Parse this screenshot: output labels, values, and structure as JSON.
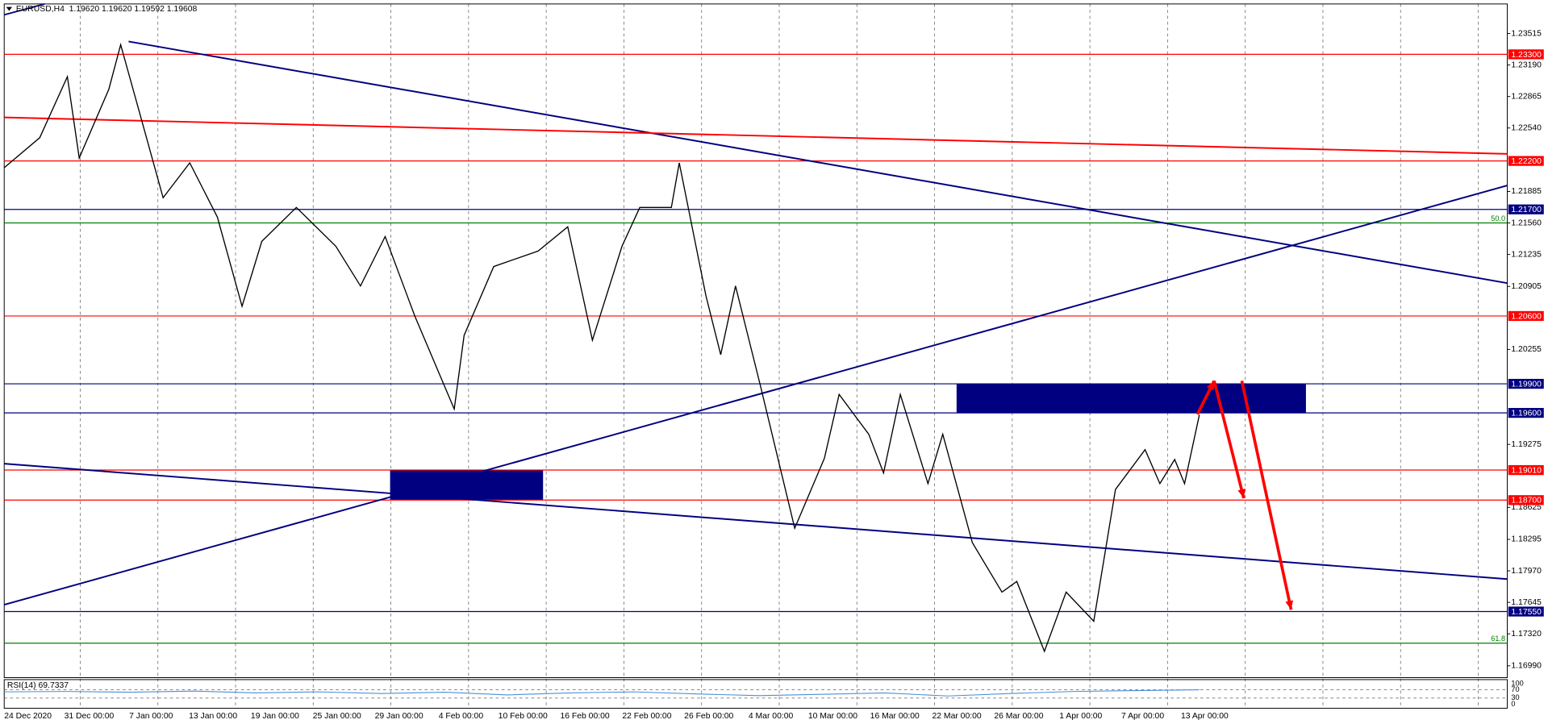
{
  "chart_data": {
    "type": "line",
    "symbol_header": "EURUSD,H4  1.19620 1.19620 1.19592 1.19608",
    "xlim": [
      0,
      1523
    ],
    "ylim": [
      1.16868,
      1.2382
    ],
    "yticks": [
      1.23515,
      {
        "value": 1.2319,
        "label": "1.23190"
      },
      1.22865,
      {
        "value": 1.2254,
        "label": "1.22540"
      },
      1.21885,
      {
        "value": 1.2156,
        "label": "1.21560"
      },
      1.21235,
      1.20905,
      1.20255,
      1.19275,
      1.18625,
      1.18295,
      {
        "value": 1.1797,
        "label": "1.17970"
      },
      1.17645,
      {
        "value": 1.1732,
        "label": "1.17320"
      },
      {
        "value": 1.1699,
        "label": "1.16990"
      }
    ],
    "time_labels": [
      "24 Dec 2020",
      "31 Dec 00:00",
      "7 Jan 00:00",
      "13 Jan 00:00",
      "19 Jan 00:00",
      "25 Jan 00:00",
      "29 Jan 00:00",
      "4 Feb 00:00",
      "10 Feb 00:00",
      "16 Feb 00:00",
      "22 Feb 00:00",
      "26 Feb 00:00",
      "4 Mar 00:00",
      "10 Mar 00:00",
      "16 Mar 00:00",
      "22 Mar 00:00",
      "26 Mar 00:00",
      "1 Apr 00:00",
      "7 Apr 00:00",
      "13 Apr 00:00"
    ],
    "series": [
      {
        "color": "#000000",
        "x": [
          0,
          36,
          64,
          76,
          106,
          118,
          136,
          161,
          188,
          216,
          241,
          261,
          296,
          336,
          361,
          386,
          416,
          456,
          466,
          496,
          541,
          571,
          596,
          626,
          644,
          676,
          684,
          711,
          726,
          741,
          766,
          801,
          831,
          846,
          876,
          891,
          908,
          936,
          951,
          981,
          1011,
          1026,
          1054,
          1076,
          1104,
          1126,
          1156,
          1171,
          1186,
          1196,
          1211
        ],
        "values": [
          1.2213,
          1.2244,
          1.2307,
          1.2223,
          1.2294,
          1.234,
          1.2274,
          1.2182,
          1.2218,
          1.2162,
          1.207,
          1.2137,
          1.2172,
          1.2132,
          1.2091,
          1.2142,
          1.206,
          1.1964,
          1.204,
          1.2111,
          1.2127,
          1.2152,
          1.2035,
          1.2132,
          1.2172,
          1.2172,
          1.2218,
          1.2081,
          1.202,
          1.2091,
          1.1989,
          1.1841,
          1.1913,
          1.1979,
          1.1938,
          1.1898,
          1.1979,
          1.1887,
          1.1938,
          1.1826,
          1.1775,
          1.1786,
          1.1714,
          1.1775,
          1.1745,
          1.1881,
          1.1922,
          1.1887,
          1.1912,
          1.1887,
          1.1958
        ]
      }
    ],
    "levels": [
      {
        "value": 1.233,
        "label": "1.23300",
        "color": "#ff0000"
      },
      {
        "value": 1.222,
        "label": "1.22200",
        "color": "#ff0000"
      },
      {
        "value": 1.217,
        "label": "1.21700",
        "color": "#000080"
      },
      {
        "value": 1.206,
        "label": "1.20600",
        "color": "#ff0000"
      },
      {
        "value": 1.199,
        "label": "1.19900",
        "color": "#000080"
      },
      {
        "value": 1.196,
        "label": "1.19600",
        "color": "#000080"
      },
      {
        "value": 1.1901,
        "label": "1.19010",
        "color": "#ff0000"
      },
      {
        "value": 1.187,
        "label": "1.18700",
        "color": "#ff0000"
      },
      {
        "value": 1.1755,
        "label": "1.17550",
        "color": "#000080"
      }
    ],
    "fib_levels": [
      {
        "value": 1.2156,
        "label": "50.0",
        "color": "#008000"
      },
      {
        "value": 1.17224,
        "label": "61.8",
        "color": "#008000"
      }
    ],
    "trendlines": [
      {
        "x": [
          126,
          1523
        ],
        "values": [
          1.23433,
          1.20939
        ],
        "color": "#000080"
      },
      {
        "x": [
          0,
          1523
        ],
        "values": [
          1.19076,
          1.17885
        ],
        "color": "#000080"
      },
      {
        "x": [
          0,
          1523
        ],
        "values": [
          1.1762,
          1.21947
        ],
        "color": "#000080"
      },
      {
        "x": [
          0,
          1523
        ],
        "values": [
          1.22649,
          1.22273
        ],
        "color": "#ff0000"
      }
    ],
    "zones": [
      {
        "x": [
          965,
          1319
        ],
        "values": [
          1.199,
          1.196
        ],
        "color": "#000080"
      },
      {
        "x": [
          391,
          546
        ],
        "values": [
          1.1901,
          1.187
        ],
        "color": "#000080"
      }
    ],
    "arrows": [
      {
        "x": [
          1209,
          1226
        ],
        "values": [
          1.19585,
          1.19931
        ],
        "color": "#ff0000"
      },
      {
        "x": [
          1226,
          1256
        ],
        "values": [
          1.19931,
          1.1872
        ],
        "color": "#ff0000"
      },
      {
        "x": [
          1254,
          1304
        ],
        "values": [
          1.19931,
          1.17569
        ],
        "color": "#ff0000"
      }
    ],
    "rsi": {
      "label": "RSI(14) 69.7337",
      "ylim": [
        0,
        100
      ],
      "yticks": [
        100,
        70,
        30,
        0
      ],
      "color": "#4a90d9",
      "values": [
        60,
        62,
        58,
        64,
        55,
        60,
        52,
        58,
        45,
        55,
        60,
        50,
        42,
        48,
        55,
        40,
        52,
        62,
        66,
        70
      ]
    }
  }
}
